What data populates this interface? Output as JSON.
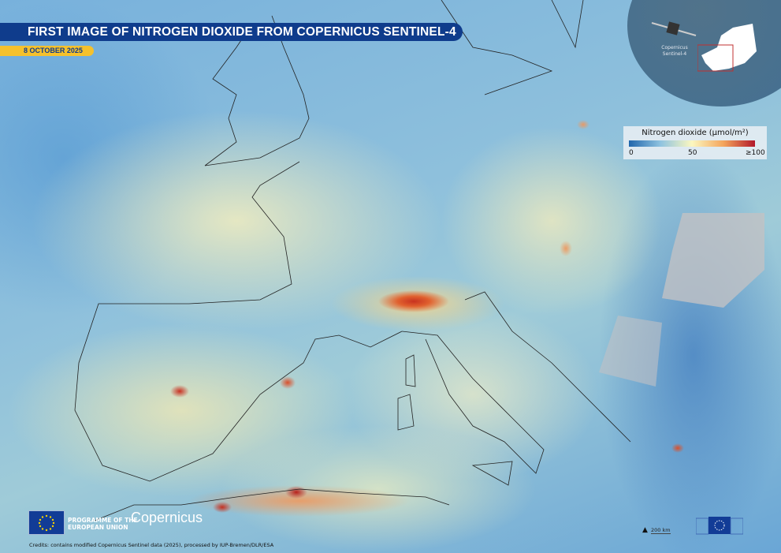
{
  "header": {
    "title": "FIRST IMAGE OF NITROGEN DIOXIDE FROM COPERNICUS SENTINEL-4",
    "date": "8 OCTOBER 2025",
    "title_color": "#0f3c8c",
    "date_color": "#f5c12c"
  },
  "inset": {
    "satellite_label_line1": "Copernicus",
    "satellite_label_line2": "Sentinel-4",
    "icons": [
      "satellite-icon",
      "europe-silhouette-icon"
    ]
  },
  "legend": {
    "title": "Nitrogen dioxide (µmol/m²)",
    "min_label": "0",
    "mid_label": "50",
    "max_label": "≥100",
    "colors": [
      "#2166ac",
      "#fbf7c0",
      "#b2182b"
    ]
  },
  "footer": {
    "programme_line1": "PROGRAMME OF THE",
    "programme_line2": "EUROPEAN UNION",
    "copernicus_logo": "Copernicus",
    "credits": "Credits: contains modified Copernicus Sentinel data (2025), processed by IUP-Bremen/DLR/ESA",
    "scale_label": "200 km"
  },
  "map": {
    "variable": "Nitrogen dioxide",
    "no_data_color": "#c2c2c4"
  }
}
